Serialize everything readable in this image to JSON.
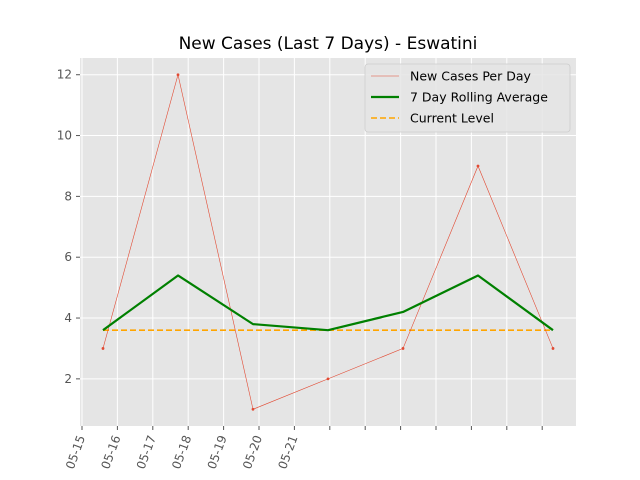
{
  "chart_data": {
    "type": "line",
    "title": "New Cases (Last 7 Days) - Eswatini",
    "xlabel": "",
    "ylabel": "",
    "x": [
      "05-15",
      "05-16",
      "05-17",
      "05-18",
      "05-19",
      "05-20",
      "05-21"
    ],
    "x_ticks": [
      "05-15",
      "05-16",
      "05-17",
      "05-18",
      "05-19",
      "05-20",
      "05-21"
    ],
    "y_ticks": [
      2,
      4,
      6,
      8,
      10,
      12
    ],
    "ylim": [
      0.45,
      12.55
    ],
    "grid": true,
    "legend_position": "top-right",
    "series": [
      {
        "name": "New Cases Per Day",
        "values": [
          3,
          12,
          1,
          2,
          3,
          9,
          3
        ],
        "color": "#e24a33",
        "style": "thin-line-markers"
      },
      {
        "name": "7 Day Rolling Average",
        "values": [
          3.6,
          5.4,
          3.8,
          3.6,
          4.2,
          5.4,
          3.6
        ],
        "color": "#008000",
        "style": "thick-line"
      },
      {
        "name": "Current Level",
        "values": [
          3.6,
          3.6,
          3.6,
          3.6,
          3.6,
          3.6,
          3.6
        ],
        "color": "#ffa500",
        "style": "dashed"
      }
    ]
  }
}
